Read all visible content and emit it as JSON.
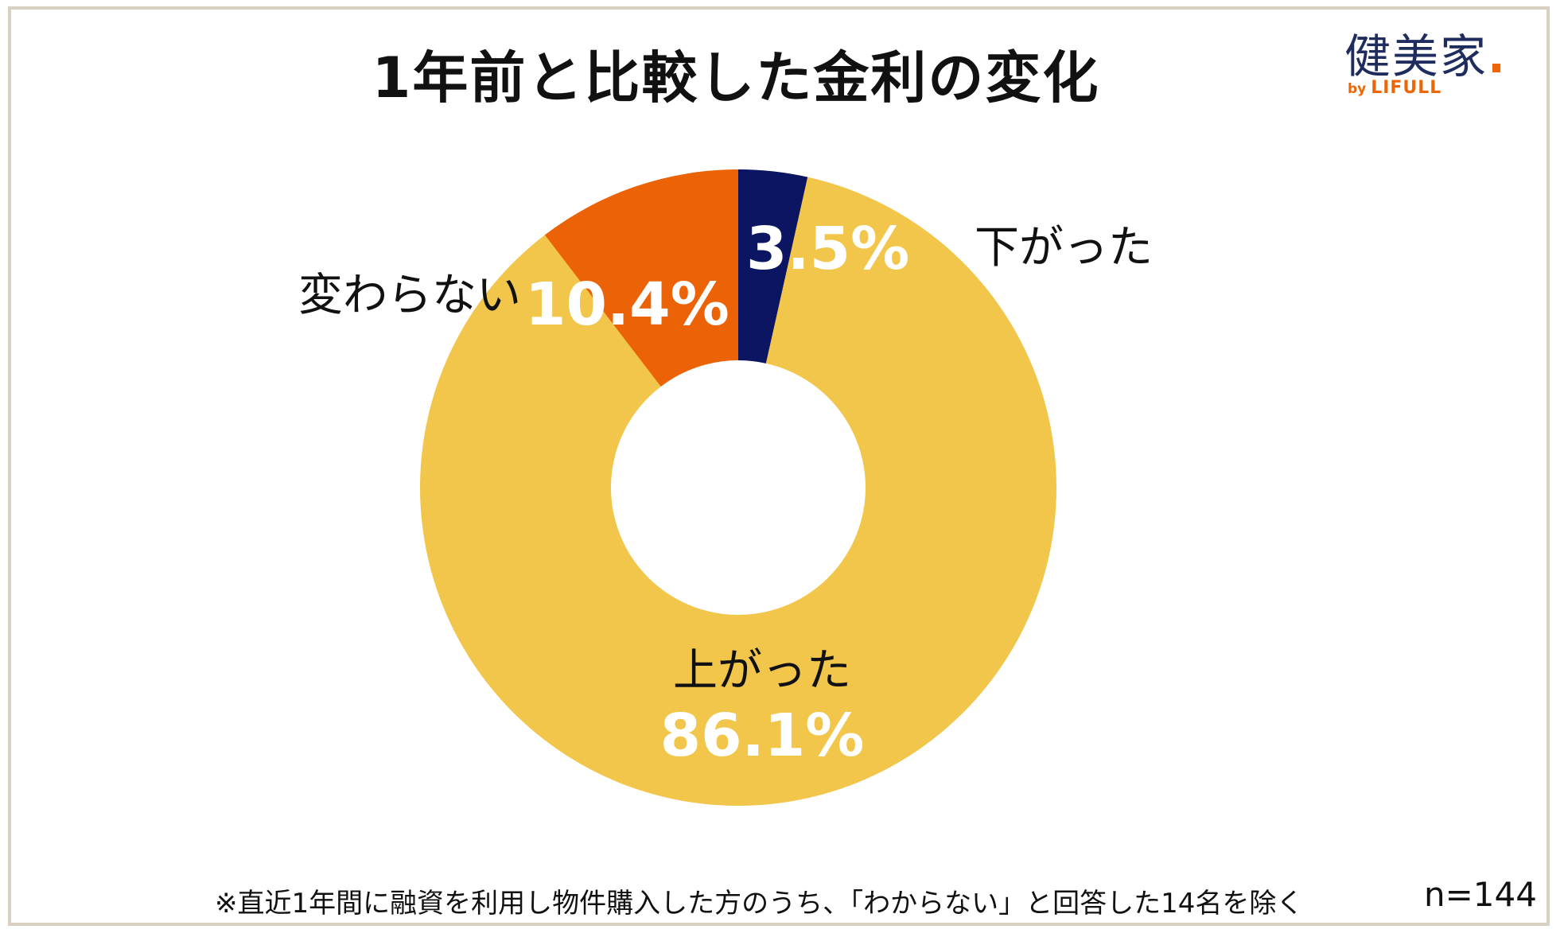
{
  "chart_data": {
    "type": "pie",
    "title": "1年前と比較した金利の変化",
    "categories": [
      "下がった",
      "上がった",
      "変わらない"
    ],
    "values": [
      3.5,
      86.1,
      10.4
    ],
    "value_labels": [
      "3.5%",
      "86.1%",
      "10.4%"
    ],
    "colors": [
      "#0b1561",
      "#f2c54b",
      "#eb6207"
    ],
    "style": "donut"
  },
  "brand": {
    "name": "健美家",
    "dot": ".",
    "by": "by",
    "sub": "LIFULL",
    "accent": "#ec6608",
    "color": "#1e2d5e"
  },
  "footnote": "※直近1年間に融資を利用し物件購入した方のうち、「わからない」と回答した14名を除く",
  "sample": "n=144"
}
